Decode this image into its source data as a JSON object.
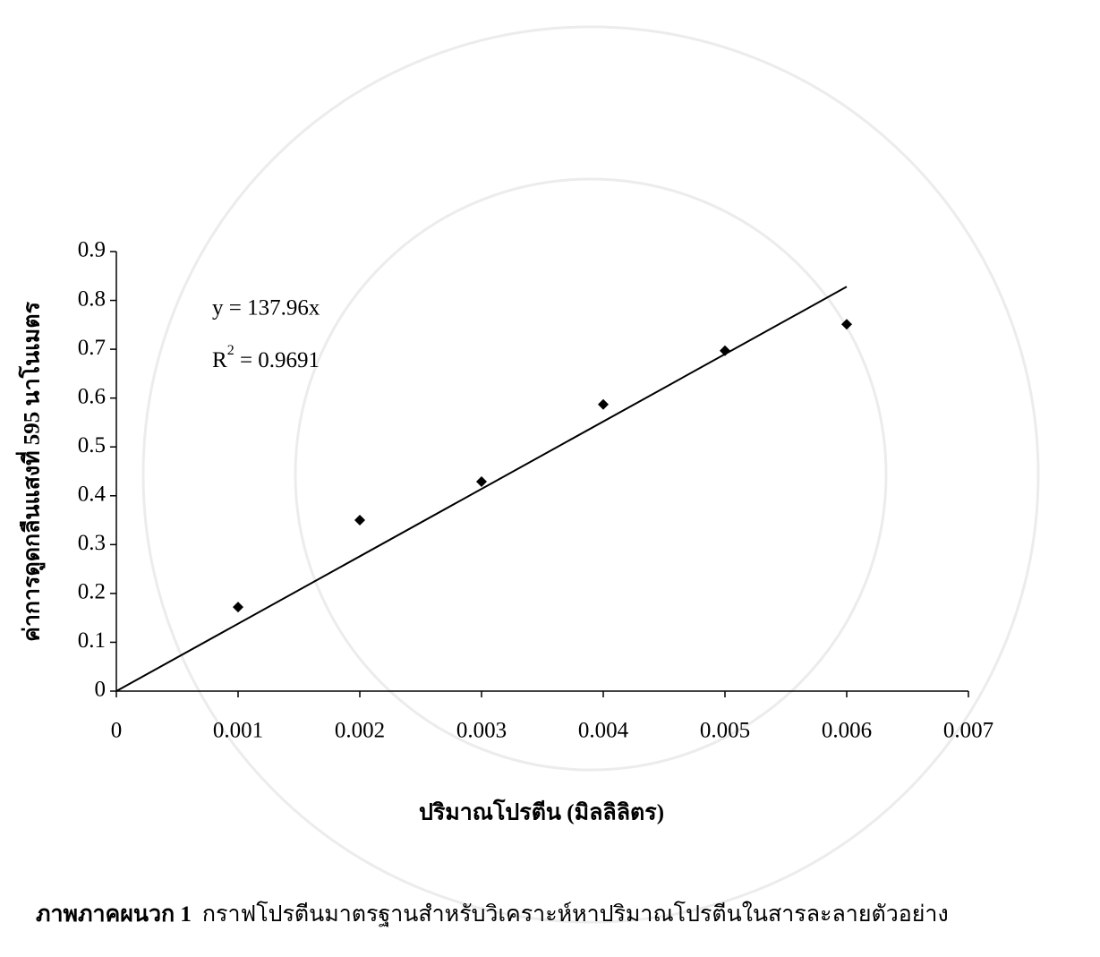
{
  "chart_data": {
    "type": "scatter",
    "y_label": "ค่าการดูดกลืนแสงที่ 595 นาโนเมตร",
    "x_label": "ปริมาณโปรตีน (มิลลิลิตร)",
    "equation": "y = 137.96x",
    "r_squared": {
      "base": "R",
      "sup": "2",
      "text": " = 0.9691"
    },
    "caption": {
      "label": "ภาพภาคผนวก 1",
      "text": "กราฟโปรตีนมาตรฐานสำหรับวิเคราะห์หาปริมาณโปรตีนในสารละลายตัวอย่าง"
    },
    "x": [
      0.001,
      0.002,
      0.003,
      0.004,
      0.005,
      0.006
    ],
    "values": [
      0.172,
      0.35,
      0.429,
      0.587,
      0.697,
      0.751
    ],
    "color": "#000000",
    "trendline": {
      "x": [
        0,
        0.006
      ],
      "values": [
        0,
        0.828
      ]
    },
    "xlim": [
      0,
      0.007
    ],
    "xticks": [
      0,
      0.001,
      0.002,
      0.003,
      0.004,
      0.005,
      0.006,
      0.007
    ],
    "ylim": [
      0,
      0.9
    ],
    "yticks": [
      0,
      0.1,
      0.2,
      0.3,
      0.4,
      0.5,
      0.6,
      0.7,
      0.8,
      0.9
    ]
  }
}
